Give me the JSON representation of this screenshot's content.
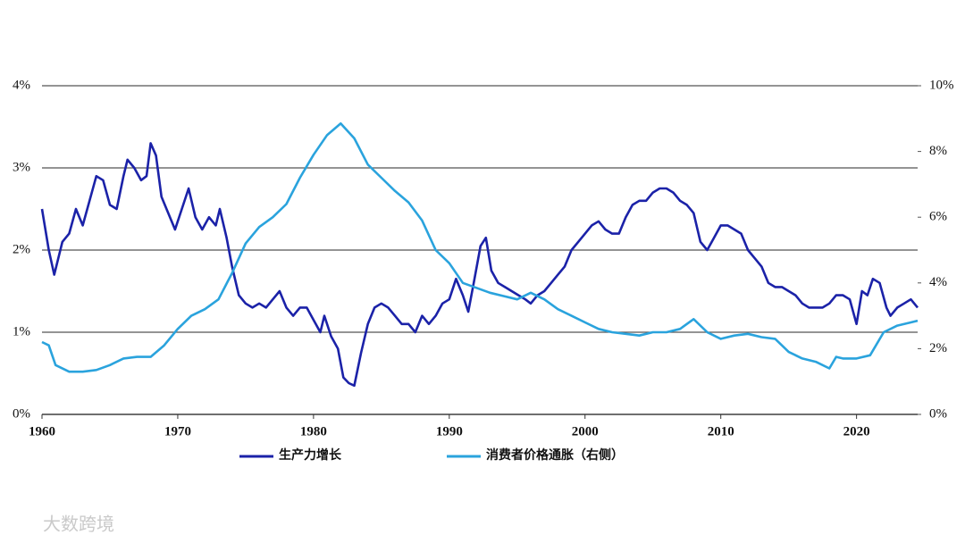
{
  "chart_data": {
    "type": "line",
    "xlim": [
      1960,
      2024.5
    ],
    "xticks": [
      1960,
      1970,
      1980,
      1990,
      2000,
      2010,
      2020
    ],
    "ylim": [
      0,
      4
    ],
    "yticks": [
      {
        "value": 0,
        "label": "0%"
      },
      {
        "value": 1,
        "label": "1%"
      },
      {
        "value": 2,
        "label": "2%"
      },
      {
        "value": 3,
        "label": "3%"
      },
      {
        "value": 4,
        "label": "4%"
      }
    ],
    "y2lim": [
      0,
      10
    ],
    "y2ticks": [
      {
        "value": 0,
        "label": "0%"
      },
      {
        "value": 2,
        "label": "2%"
      },
      {
        "value": 4,
        "label": "4%"
      },
      {
        "value": 6,
        "label": "6%"
      },
      {
        "value": 8,
        "label": "8%"
      },
      {
        "value": 10,
        "label": "10%"
      }
    ],
    "grid": true,
    "watermark": "大数跨境",
    "series": [
      {
        "name": "生产力增长",
        "color": "#1b22a8",
        "axis": "y",
        "x": [
          1960,
          1960.5,
          1960.9,
          1961.5,
          1962,
          1962.5,
          1963,
          1963.5,
          1964,
          1964.5,
          1965,
          1965.5,
          1966,
          1966.3,
          1966.8,
          1967.3,
          1967.7,
          1968,
          1968.4,
          1968.8,
          1969.3,
          1969.8,
          1970.3,
          1970.8,
          1971.3,
          1971.8,
          1972.3,
          1972.8,
          1973.1,
          1973.6,
          1974,
          1974.5,
          1975,
          1975.5,
          1976,
          1976.5,
          1977,
          1977.5,
          1978,
          1978.5,
          1979,
          1979.5,
          1980,
          1980.5,
          1980.8,
          1981.3,
          1981.8,
          1982.2,
          1982.6,
          1983,
          1983.5,
          1984,
          1984.5,
          1985,
          1985.5,
          1986,
          1986.5,
          1987,
          1987.5,
          1988,
          1988.5,
          1989,
          1989.5,
          1990,
          1990.5,
          1991,
          1991.4,
          1991.8,
          1992.3,
          1992.7,
          1993.1,
          1993.6,
          1994.1,
          1994.6,
          1995.1,
          1995.6,
          1996,
          1996.5,
          1997,
          1997.5,
          1998,
          1998.5,
          1999,
          1999.5,
          2000,
          2000.5,
          2001,
          2001.5,
          2002,
          2002.5,
          2003,
          2003.5,
          2004,
          2004.5,
          2005,
          2005.5,
          2006,
          2006.5,
          2007,
          2007.5,
          2008,
          2008.5,
          2009,
          2009.5,
          2010,
          2010.5,
          2011,
          2011.5,
          2012,
          2012.5,
          2013,
          2013.5,
          2014,
          2014.5,
          2015,
          2015.5,
          2016,
          2016.5,
          2017,
          2017.5,
          2018,
          2018.5,
          2019,
          2019.5,
          2020,
          2020.4,
          2020.8,
          2021.2,
          2021.7,
          2022.2,
          2022.5,
          2023,
          2023.5,
          2024,
          2024.5
        ],
        "values": [
          2.5,
          2.0,
          1.7,
          2.1,
          2.2,
          2.5,
          2.3,
          2.6,
          2.9,
          2.85,
          2.55,
          2.5,
          2.9,
          3.1,
          3.0,
          2.85,
          2.9,
          3.3,
          3.15,
          2.65,
          2.45,
          2.25,
          2.5,
          2.75,
          2.4,
          2.25,
          2.4,
          2.3,
          2.5,
          2.15,
          1.8,
          1.45,
          1.35,
          1.3,
          1.35,
          1.3,
          1.4,
          1.5,
          1.3,
          1.2,
          1.3,
          1.3,
          1.15,
          1.0,
          1.2,
          0.95,
          0.8,
          0.45,
          0.38,
          0.35,
          0.75,
          1.1,
          1.3,
          1.35,
          1.3,
          1.2,
          1.1,
          1.1,
          1.0,
          1.2,
          1.1,
          1.2,
          1.35,
          1.4,
          1.65,
          1.45,
          1.25,
          1.6,
          2.05,
          2.15,
          1.75,
          1.6,
          1.55,
          1.5,
          1.45,
          1.4,
          1.35,
          1.45,
          1.5,
          1.6,
          1.7,
          1.8,
          2.0,
          2.1,
          2.2,
          2.3,
          2.35,
          2.25,
          2.2,
          2.2,
          2.4,
          2.55,
          2.6,
          2.6,
          2.7,
          2.75,
          2.75,
          2.7,
          2.6,
          2.55,
          2.45,
          2.1,
          2.0,
          2.15,
          2.3,
          2.3,
          2.25,
          2.2,
          2.0,
          1.9,
          1.8,
          1.6,
          1.55,
          1.55,
          1.5,
          1.45,
          1.35,
          1.3,
          1.3,
          1.3,
          1.35,
          1.45,
          1.45,
          1.4,
          1.1,
          1.5,
          1.45,
          1.65,
          1.6,
          1.3,
          1.2,
          1.3,
          1.35,
          1.4,
          1.3
        ]
      },
      {
        "name": "消费者价格通胀（右侧）",
        "color": "#2aa3dd",
        "axis": "y2",
        "x": [
          1960,
          1960.5,
          1961,
          1962,
          1963,
          1964,
          1965,
          1966,
          1967,
          1968,
          1969,
          1970,
          1971,
          1972,
          1973,
          1974,
          1975,
          1976,
          1977,
          1978,
          1979,
          1980,
          1981,
          1982,
          1983,
          1984,
          1985,
          1986,
          1987,
          1988,
          1989,
          1990,
          1991,
          1992,
          1993,
          1994,
          1995,
          1996,
          1997,
          1998,
          1999,
          2000,
          2001,
          2002,
          2003,
          2004,
          2005,
          2006,
          2007,
          2008,
          2009,
          2010,
          2011,
          2012,
          2013,
          2014,
          2015,
          2016,
          2017,
          2018,
          2018.5,
          2019,
          2020,
          2021,
          2022,
          2023,
          2024,
          2024.5
        ],
        "values": [
          2.2,
          2.1,
          1.5,
          1.3,
          1.3,
          1.35,
          1.5,
          1.7,
          1.75,
          1.75,
          2.1,
          2.6,
          3.0,
          3.2,
          3.5,
          4.3,
          5.2,
          5.7,
          6.0,
          6.4,
          7.2,
          7.9,
          8.5,
          8.85,
          8.4,
          7.6,
          7.2,
          6.8,
          6.45,
          5.9,
          5.0,
          4.6,
          4.0,
          3.85,
          3.7,
          3.6,
          3.5,
          3.7,
          3.5,
          3.2,
          3.0,
          2.8,
          2.6,
          2.5,
          2.45,
          2.4,
          2.5,
          2.5,
          2.6,
          2.9,
          2.5,
          2.3,
          2.4,
          2.45,
          2.35,
          2.3,
          1.9,
          1.7,
          1.6,
          1.4,
          1.75,
          1.7,
          1.7,
          1.8,
          2.5,
          2.7,
          2.8,
          2.85
        ]
      }
    ]
  }
}
